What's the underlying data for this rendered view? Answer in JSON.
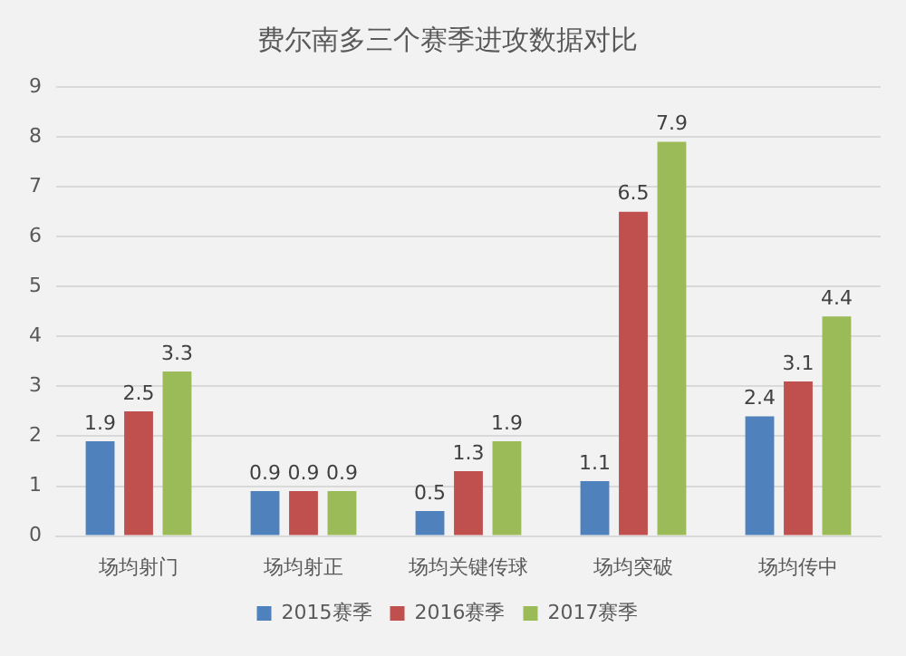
{
  "chart_data": {
    "type": "bar",
    "title": "费尔南多三个赛季进攻数据对比",
    "categories": [
      "场均射门",
      "场均射正",
      "场均关键传球",
      "场均突破",
      "场均传中"
    ],
    "series": [
      {
        "name": "2015赛季",
        "color": "#4f81bd",
        "values": [
          1.9,
          0.9,
          0.5,
          1.1,
          2.4
        ]
      },
      {
        "name": "2016赛季",
        "color": "#c0504d",
        "values": [
          2.5,
          0.9,
          1.3,
          6.5,
          3.1
        ]
      },
      {
        "name": "2017赛季",
        "color": "#9bbb59",
        "values": [
          3.3,
          0.9,
          1.9,
          7.9,
          4.4
        ]
      }
    ],
    "ylim": [
      0,
      9
    ],
    "yticks": [
      0,
      1,
      2,
      3,
      4,
      5,
      6,
      7,
      8,
      9
    ],
    "grid": "y",
    "legend": "bottom",
    "data_labels": true
  }
}
